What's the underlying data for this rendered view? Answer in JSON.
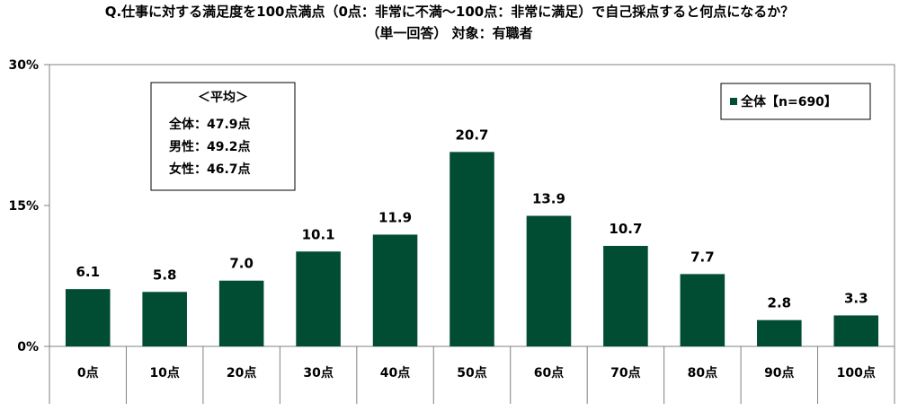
{
  "title_line1": "Q.仕事に対する満足度を100点満点（0点：非常に不満～100点：非常に満足）で自己採点すると何点になるか？",
  "title_line2": "（単一回答） 対象：有職者",
  "stats_box": {
    "heading": "＜平均＞",
    "lines": [
      "全体：47.9点",
      "男性：49.2点",
      "女性：46.7点"
    ]
  },
  "colors": {
    "bar": "#004d33",
    "axis": "#808080",
    "grid": "#808080"
  },
  "chart_data": {
    "type": "bar",
    "categories": [
      "0点",
      "10点",
      "20点",
      "30点",
      "40点",
      "50点",
      "60点",
      "70点",
      "80点",
      "90点",
      "100点"
    ],
    "series": [
      {
        "name": "全体【n=690】",
        "values": [
          6.1,
          5.8,
          7.0,
          10.1,
          11.9,
          20.7,
          13.9,
          10.7,
          7.7,
          2.8,
          3.3
        ]
      }
    ],
    "value_labels": [
      "6.1",
      "5.8",
      "7.0",
      "10.1",
      "11.9",
      "20.7",
      "13.9",
      "10.7",
      "7.7",
      "2.8",
      "3.3"
    ],
    "ylim": [
      0,
      30
    ],
    "yticks": [
      0,
      15,
      30
    ],
    "ytick_labels": [
      "0%",
      "15%",
      "30%"
    ],
    "xlabel": "",
    "ylabel": "",
    "grid": false,
    "legend_position": "top-right"
  }
}
